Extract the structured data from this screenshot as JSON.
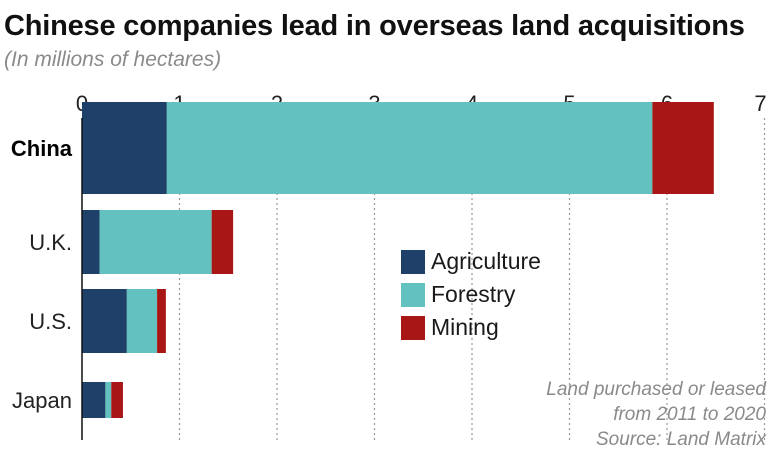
{
  "title": "Chinese companies lead in overseas land acquisitions",
  "subtitle": "(In millions of hectares)",
  "note": {
    "line1": "Land purchased or leased",
    "line2": "from 2011 to 2020",
    "source": "Source: Land Matrix"
  },
  "colors": {
    "agriculture": "#1f4068",
    "forestry": "#63c2bf",
    "mining": "#a91616"
  },
  "chart_data": {
    "type": "bar",
    "orientation": "horizontal",
    "stacked": true,
    "title": "Chinese companies lead in overseas land acquisitions",
    "subtitle": "(In millions of hectares)",
    "categories": [
      "China",
      "U.K.",
      "U.S.",
      "Japan"
    ],
    "series": [
      {
        "name": "Agriculture",
        "values": [
          0.87,
          0.18,
          0.46,
          0.24
        ]
      },
      {
        "name": "Forestry",
        "values": [
          4.98,
          1.15,
          0.31,
          0.06
        ]
      },
      {
        "name": "Mining",
        "values": [
          0.63,
          0.22,
          0.09,
          0.12
        ]
      }
    ],
    "xlim": [
      0,
      7
    ],
    "xticks": [
      "0",
      "1",
      "2",
      "3",
      "4",
      "5",
      "6",
      "7"
    ],
    "grid": "vertical dotted",
    "legend_position": "center-right",
    "highlighted_category": "China"
  }
}
